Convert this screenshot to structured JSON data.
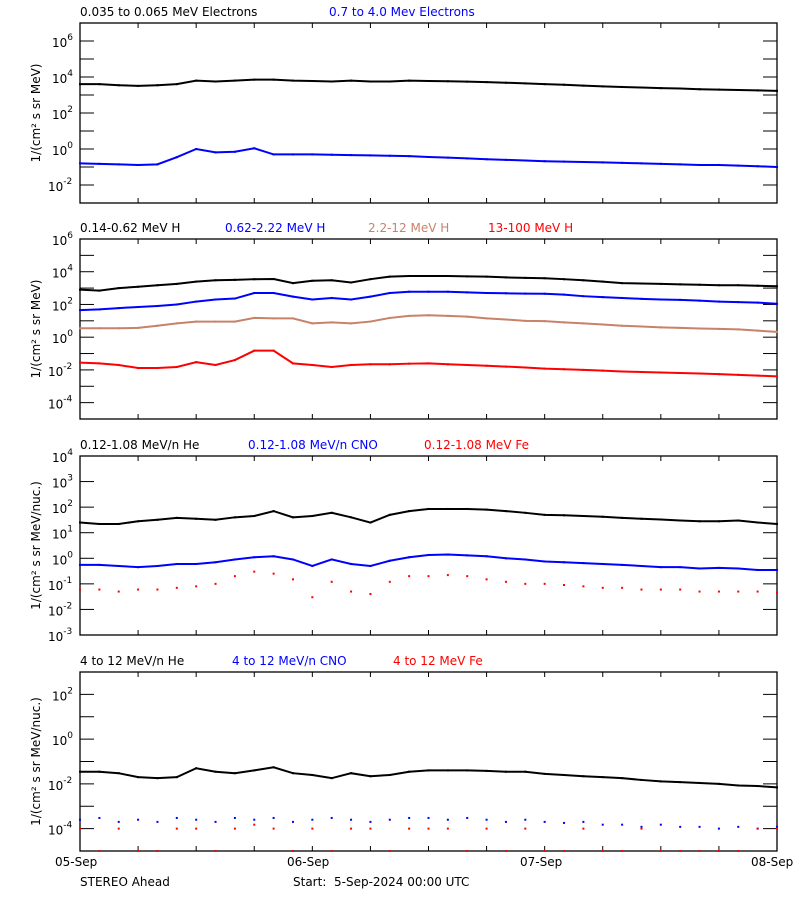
{
  "chart_data": [
    {
      "type": "line",
      "ylabel": "1/(cm² s sr MeV)",
      "yscale": "log",
      "ylim": [
        0.001,
        10000000.0
      ],
      "y_tick_exponents": [
        6,
        4,
        2,
        0,
        -2
      ],
      "x_hours": [
        0,
        2,
        4,
        6,
        8,
        10,
        12,
        14,
        16,
        18,
        20,
        22,
        24,
        26,
        28,
        30,
        32,
        34,
        36,
        38,
        40,
        42,
        44,
        46,
        48,
        50,
        52,
        54,
        56,
        58,
        60,
        62,
        64,
        66,
        68,
        70,
        72
      ],
      "series": [
        {
          "name": "0.035 to 0.065 MeV Electrons",
          "color": "#000000",
          "style": "line",
          "values": [
            4000,
            4000,
            3500,
            3200,
            3500,
            4000,
            6300,
            5600,
            6300,
            7100,
            7100,
            6300,
            6000,
            5600,
            6300,
            5600,
            5600,
            6300,
            6000,
            5800,
            5500,
            5200,
            4800,
            4400,
            4000,
            3700,
            3300,
            3000,
            2800,
            2600,
            2400,
            2300,
            2100,
            2000,
            1900,
            1800,
            1700
          ]
        },
        {
          "name": "0.7 to 4.0 Mev Electrons",
          "color": "#0000ff",
          "style": "line",
          "values": [
            0.16,
            0.15,
            0.14,
            0.13,
            0.14,
            0.35,
            1.0,
            0.65,
            0.7,
            1.1,
            0.5,
            0.5,
            0.5,
            0.48,
            0.46,
            0.44,
            0.42,
            0.4,
            0.36,
            0.33,
            0.3,
            0.27,
            0.25,
            0.23,
            0.21,
            0.2,
            0.19,
            0.18,
            0.17,
            0.16,
            0.15,
            0.14,
            0.13,
            0.13,
            0.12,
            0.11,
            0.1
          ]
        }
      ]
    },
    {
      "type": "line",
      "ylabel": "1/(cm² s sr MeV)",
      "yscale": "log",
      "ylim": [
        1e-05,
        1000000.0
      ],
      "y_tick_exponents": [
        6,
        4,
        2,
        0,
        -2,
        -4
      ],
      "x_hours": [
        0,
        2,
        4,
        6,
        8,
        10,
        12,
        14,
        16,
        18,
        20,
        22,
        24,
        26,
        28,
        30,
        32,
        34,
        36,
        38,
        40,
        42,
        44,
        46,
        48,
        50,
        52,
        54,
        56,
        58,
        60,
        62,
        64,
        66,
        68,
        70,
        72
      ],
      "series": [
        {
          "name": "0.14-0.62 MeV H",
          "color": "#000000",
          "style": "line",
          "values": [
            800,
            700,
            1000,
            1200,
            1500,
            1800,
            2500,
            3000,
            3200,
            3500,
            3600,
            2000,
            2800,
            3000,
            2200,
            3500,
            5000,
            5500,
            5500,
            5500,
            5200,
            5000,
            4500,
            4200,
            4000,
            3500,
            3000,
            2500,
            2000,
            1900,
            1800,
            1700,
            1600,
            1500,
            1500,
            1400,
            1300
          ]
        },
        {
          "name": "0.62-2.22 MeV H",
          "color": "#0000ff",
          "style": "line",
          "values": [
            45,
            50,
            60,
            70,
            80,
            100,
            150,
            200,
            230,
            500,
            500,
            300,
            200,
            250,
            200,
            300,
            500,
            600,
            600,
            600,
            550,
            500,
            480,
            460,
            450,
            400,
            320,
            280,
            250,
            220,
            200,
            190,
            170,
            150,
            140,
            130,
            110
          ]
        },
        {
          "name": "2.2-12 MeV H",
          "color": "#c8826a",
          "style": "line",
          "values": [
            3.5,
            3.5,
            3.5,
            3.7,
            5,
            7,
            9,
            9,
            9,
            15,
            14,
            14,
            7,
            8,
            7,
            9,
            15,
            20,
            22,
            20,
            18,
            14,
            12,
            10,
            9.5,
            8,
            7,
            6,
            5,
            4.5,
            4,
            3.7,
            3.4,
            3.2,
            3,
            2.5,
            2.1
          ]
        },
        {
          "name": "13-100 MeV H",
          "color": "#ff0000",
          "style": "line",
          "values": [
            0.028,
            0.025,
            0.02,
            0.013,
            0.013,
            0.015,
            0.03,
            0.02,
            0.04,
            0.15,
            0.15,
            0.025,
            0.02,
            0.015,
            0.02,
            0.022,
            0.022,
            0.024,
            0.025,
            0.022,
            0.02,
            0.018,
            0.016,
            0.014,
            0.012,
            0.011,
            0.01,
            0.009,
            0.008,
            0.0075,
            0.007,
            0.0065,
            0.006,
            0.0055,
            0.005,
            0.0045,
            0.004
          ]
        }
      ]
    },
    {
      "type": "scatter",
      "ylabel": "1/(cm² s sr MeV/nuc.)",
      "yscale": "log",
      "ylim": [
        0.001,
        10000.0
      ],
      "y_tick_exponents": [
        4,
        3,
        2,
        1,
        0,
        -1,
        -2,
        -3
      ],
      "x_hours": [
        0,
        2,
        4,
        6,
        8,
        10,
        12,
        14,
        16,
        18,
        20,
        22,
        24,
        26,
        28,
        30,
        32,
        34,
        36,
        38,
        40,
        42,
        44,
        46,
        48,
        50,
        52,
        54,
        56,
        58,
        60,
        62,
        64,
        66,
        68,
        70,
        72
      ],
      "series": [
        {
          "name": "0.12-1.08 MeV/n He",
          "color": "#000000",
          "style": "line",
          "values": [
            25,
            22,
            22,
            28,
            32,
            38,
            35,
            32,
            40,
            45,
            70,
            40,
            45,
            60,
            40,
            25,
            50,
            70,
            85,
            85,
            85,
            80,
            70,
            60,
            50,
            48,
            45,
            42,
            38,
            35,
            33,
            30,
            28,
            28,
            30,
            25,
            22
          ]
        },
        {
          "name": "0.12-1.08 MeV/n CNO",
          "color": "#0000ff",
          "style": "line",
          "values": [
            0.55,
            0.55,
            0.5,
            0.45,
            0.5,
            0.6,
            0.6,
            0.7,
            0.9,
            1.1,
            1.2,
            0.9,
            0.5,
            0.9,
            0.6,
            0.5,
            0.8,
            1.1,
            1.35,
            1.4,
            1.3,
            1.2,
            1.0,
            0.9,
            0.75,
            0.7,
            0.65,
            0.6,
            0.55,
            0.5,
            0.45,
            0.45,
            0.4,
            0.42,
            0.4,
            0.35,
            0.35
          ]
        },
        {
          "name": "0.12-1.08 MeV Fe",
          "color": "#ff0000",
          "style": "dots",
          "values": [
            0.06,
            0.06,
            0.05,
            0.06,
            0.06,
            0.07,
            0.08,
            0.1,
            0.2,
            0.3,
            0.25,
            0.15,
            0.03,
            0.12,
            0.05,
            0.04,
            0.12,
            0.2,
            0.2,
            0.22,
            0.2,
            0.15,
            0.12,
            0.1,
            0.1,
            0.09,
            0.08,
            0.07,
            0.07,
            0.06,
            0.06,
            0.06,
            0.05,
            0.05,
            0.05,
            0.05,
            0.045
          ]
        }
      ]
    },
    {
      "type": "scatter",
      "ylabel": "1/(cm² s sr MeV/nuc.)",
      "yscale": "log",
      "ylim": [
        1e-05,
        1000.0
      ],
      "y_tick_exponents": [
        2,
        0,
        -2,
        -4
      ],
      "x_hours": [
        0,
        2,
        4,
        6,
        8,
        10,
        12,
        14,
        16,
        18,
        20,
        22,
        24,
        26,
        28,
        30,
        32,
        34,
        36,
        38,
        40,
        42,
        44,
        46,
        48,
        50,
        52,
        54,
        56,
        58,
        60,
        62,
        64,
        66,
        68,
        70,
        72
      ],
      "series": [
        {
          "name": "4 to 12 MeV/n He",
          "color": "#000000",
          "style": "line",
          "values": [
            0.035,
            0.035,
            0.03,
            0.02,
            0.018,
            0.02,
            0.05,
            0.035,
            0.03,
            0.04,
            0.055,
            0.03,
            0.025,
            0.018,
            0.03,
            0.022,
            0.025,
            0.035,
            0.04,
            0.04,
            0.04,
            0.038,
            0.035,
            0.035,
            0.028,
            0.025,
            0.022,
            0.02,
            0.018,
            0.015,
            0.013,
            0.012,
            0.011,
            0.01,
            0.0085,
            0.008,
            0.007
          ]
        },
        {
          "name": "4 to 12 MeV/n CNO",
          "color": "#0000ff",
          "style": "dots",
          "values": [
            0.00025,
            0.0003,
            0.0002,
            0.00025,
            0.0002,
            0.0003,
            0.00025,
            0.0002,
            0.0003,
            0.00025,
            0.0003,
            0.0002,
            0.00025,
            0.0003,
            0.00025,
            0.0002,
            0.00025,
            0.0003,
            0.0003,
            0.00025,
            0.0003,
            0.00025,
            0.0002,
            0.00025,
            0.0002,
            0.00018,
            0.0002,
            0.00015,
            0.00015,
            0.00012,
            0.00015,
            0.00012,
            0.00012,
            0.0001,
            0.00012,
            0.0001,
            0.00012
          ]
        },
        {
          "name": "4 to 12 MeV Fe",
          "color": "#ff0000",
          "style": "dots",
          "values": [
            0.0001,
            1e-05,
            0.0001,
            1e-05,
            1e-05,
            0.0001,
            0.0001,
            1e-05,
            0.0001,
            0.00015,
            0.0001,
            1e-05,
            0.0001,
            1e-05,
            0.0001,
            0.0001,
            1e-05,
            0.0001,
            0.0001,
            0.0001,
            1e-05,
            0.0001,
            1e-05,
            0.0001,
            1e-05,
            1e-05,
            0.0001,
            1e-05,
            1e-05,
            0.0001,
            1e-05,
            1e-05,
            1e-05,
            1e-05,
            1e-05,
            0.0001,
            0.0001
          ]
        }
      ]
    }
  ],
  "x_axis": {
    "tick_labels": [
      "05-Sep",
      "06-Sep",
      "07-Sep",
      "08-Sep"
    ],
    "range_hours": [
      0,
      72
    ]
  },
  "footer": {
    "spacecraft": "STEREO Ahead",
    "start": "Start:  5-Sep-2024 00:00 UTC"
  }
}
